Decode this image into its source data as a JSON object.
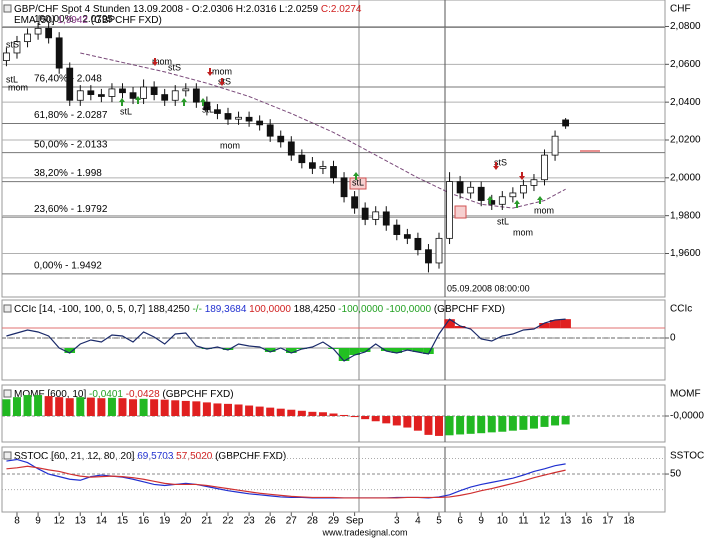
{
  "chart_data": [
    {
      "type": "candlestick",
      "header": [
        {
          "text": "GBP/CHF Spot 4 Stunden  13.09.2008 - O:2.0306 H:2.0316 L:2.0259",
          "color": "#000000"
        },
        {
          "text": " C:2.0274",
          "color": "#d02020"
        }
      ],
      "axis_label": "CHF",
      "x": [
        -0.5,
        0,
        0.5,
        1,
        1.5,
        2,
        2.5,
        3,
        3.5,
        4,
        4.5,
        5,
        5.5,
        6,
        6.5,
        7,
        7.5,
        8,
        8.5,
        9,
        9.5,
        10,
        10.5,
        11,
        11.5,
        12,
        12.5,
        13,
        13.5,
        14,
        14.5,
        15,
        15.5,
        16,
        16.5,
        17,
        17.5,
        18,
        18.5,
        19,
        19.5,
        20,
        20.5,
        21,
        21.5,
        22,
        22.5,
        23,
        23.5,
        24,
        24.5,
        25,
        25.5,
        26
      ],
      "open": [
        2.062,
        2.066,
        2.072,
        2.076,
        2.079,
        2.074,
        2.058,
        2.041,
        2.046,
        2.044,
        2.043,
        2.047,
        2.045,
        2.042,
        2.048,
        2.044,
        2.041,
        2.046,
        2.047,
        2.04,
        2.036,
        2.034,
        2.031,
        2.032,
        2.03,
        2.028,
        2.022,
        2.019,
        2.012,
        2.008,
        2.005,
        2.006,
        2.0,
        1.99,
        1.984,
        1.978,
        1.982,
        1.975,
        1.97,
        1.968,
        1.962,
        1.955,
        1.968,
        1.998,
        1.992,
        1.995,
        1.988,
        1.986,
        1.99,
        1.992,
        1.996,
        1.999,
        2.012,
        2.0306
      ],
      "high": [
        2.069,
        2.075,
        2.079,
        2.082,
        2.082,
        2.077,
        2.061,
        2.049,
        2.049,
        2.047,
        2.05,
        2.05,
        2.048,
        2.052,
        2.051,
        2.047,
        2.049,
        2.05,
        2.05,
        2.043,
        2.039,
        2.037,
        2.035,
        2.035,
        2.033,
        2.031,
        2.025,
        2.022,
        2.015,
        2.011,
        2.009,
        2.009,
        2.003,
        1.993,
        1.987,
        1.985,
        1.985,
        1.978,
        1.973,
        1.971,
        1.965,
        1.971,
        2.003,
        2.001,
        1.998,
        1.998,
        1.991,
        1.993,
        1.995,
        1.999,
        2.002,
        2.015,
        2.025,
        2.0316
      ],
      "low": [
        2.059,
        2.063,
        2.069,
        2.073,
        2.071,
        2.055,
        2.038,
        2.038,
        2.041,
        2.04,
        2.04,
        2.042,
        2.039,
        2.039,
        2.041,
        2.038,
        2.038,
        2.043,
        2.037,
        2.033,
        2.031,
        2.028,
        2.028,
        2.027,
        2.025,
        2.019,
        2.016,
        2.009,
        2.005,
        2.002,
        2.002,
        1.997,
        1.987,
        1.981,
        1.975,
        1.975,
        1.972,
        1.967,
        1.965,
        1.959,
        1.95,
        1.952,
        1.965,
        1.989,
        1.989,
        1.985,
        1.983,
        1.983,
        1.987,
        1.989,
        1.993,
        1.996,
        2.009,
        2.0259
      ],
      "close": [
        2.066,
        2.072,
        2.076,
        2.079,
        2.074,
        2.058,
        2.041,
        2.046,
        2.044,
        2.043,
        2.047,
        2.045,
        2.042,
        2.048,
        2.044,
        2.041,
        2.046,
        2.047,
        2.04,
        2.036,
        2.034,
        2.031,
        2.032,
        2.03,
        2.028,
        2.022,
        2.019,
        2.012,
        2.008,
        2.005,
        2.006,
        2.0,
        1.99,
        1.984,
        1.978,
        1.982,
        1.975,
        1.97,
        1.968,
        1.962,
        1.955,
        1.968,
        1.998,
        1.992,
        1.995,
        1.988,
        1.986,
        1.99,
        1.992,
        1.996,
        1.999,
        2.012,
        2.022,
        2.0274
      ],
      "up_color": "#ffffff",
      "down_color": "#111111",
      "ema": {
        "header": [
          {
            "text": "EMA [50] ",
            "color": "#000000"
          },
          {
            "text": "1,9942",
            "color": "#8a3a8a"
          },
          {
            "text": " (GBPCHF FXD)",
            "color": "#000000"
          }
        ],
        "color": "#7a4a7a",
        "x": [
          3,
          5,
          7,
          9,
          11,
          13,
          15,
          17,
          19,
          20.5,
          22,
          23.5,
          25,
          26
        ],
        "values": [
          2.066,
          2.061,
          2.056,
          2.05,
          2.043,
          2.034,
          2.024,
          2.012,
          2.0,
          1.992,
          1.986,
          1.984,
          1.988,
          1.994
        ]
      },
      "levels": [
        {
          "label": "100,00% - 2.0795",
          "value": 2.0795
        },
        {
          "label": "76,40% - 2.048",
          "value": 2.048
        },
        {
          "label": "61,80% - 2.0287",
          "value": 2.0287
        },
        {
          "label": "50,00% - 2.0133",
          "value": 2.0133
        },
        {
          "label": "38,20% - 1.998",
          "value": 1.998
        },
        {
          "label": "23,60% - 1.9792",
          "value": 1.9792
        },
        {
          "label": "0,00% - 1.9492",
          "value": 1.9492
        }
      ],
      "annotations": [
        "stS",
        "stL",
        "mom",
        "mom",
        "stS",
        "stL",
        "mom",
        "stS",
        "stL",
        "mom",
        "stL",
        "stS",
        "stL",
        "mom",
        "mom",
        "05.09.2008 08:00:00"
      ],
      "xlim": [
        -0.71,
        30.71
      ],
      "xticks": [
        {
          "value": 0,
          "label": "8"
        },
        {
          "value": 1,
          "label": "9"
        },
        {
          "value": 2,
          "label": "12"
        },
        {
          "value": 3,
          "label": "13"
        },
        {
          "value": 4,
          "label": "14"
        },
        {
          "value": 5,
          "label": "15"
        },
        {
          "value": 6,
          "label": "16"
        },
        {
          "value": 7,
          "label": "19"
        },
        {
          "value": 8,
          "label": "20"
        },
        {
          "value": 9,
          "label": "21"
        },
        {
          "value": 10,
          "label": "22"
        },
        {
          "value": 11,
          "label": "23"
        },
        {
          "value": 12,
          "label": "26"
        },
        {
          "value": 13,
          "label": "27"
        },
        {
          "value": 14,
          "label": "28"
        },
        {
          "value": 15,
          "label": "29"
        },
        {
          "value": 16,
          "label": "Sep"
        },
        {
          "value": 18,
          "label": "3"
        },
        {
          "value": 19,
          "label": "4"
        },
        {
          "value": 20,
          "label": "5"
        },
        {
          "value": 21,
          "label": "6"
        },
        {
          "value": 22,
          "label": "9"
        },
        {
          "value": 23,
          "label": "10"
        },
        {
          "value": 24,
          "label": "11"
        },
        {
          "value": 25,
          "label": "12"
        },
        {
          "value": 26,
          "label": "13"
        },
        {
          "value": 27,
          "label": "16"
        },
        {
          "value": 28,
          "label": "17"
        },
        {
          "value": 29,
          "label": "18"
        }
      ],
      "ylim": [
        1.937,
        2.094
      ],
      "yticks": [
        {
          "value": 2.08,
          "label": "2,0800"
        },
        {
          "value": 2.06,
          "label": "2,0600"
        },
        {
          "value": 2.04,
          "label": "2,0400"
        },
        {
          "value": 2.02,
          "label": "2,0200"
        },
        {
          "value": 2.0,
          "label": "2,0000"
        },
        {
          "value": 1.98,
          "label": "1,9800"
        },
        {
          "value": 1.96,
          "label": "1,9600"
        }
      ],
      "grid": true
    },
    {
      "type": "line",
      "header": [
        {
          "text": "CCIc [14, -100, 100, 0, 5, 0,7] ",
          "color": "#000000"
        },
        {
          "text": "188,4250",
          "color": "#000000"
        },
        {
          "text": " -/- ",
          "color": "#22a022"
        },
        {
          "text": "189,3684",
          "color": "#2030d0"
        },
        {
          "text": " 100,0000",
          "color": "#d02020"
        },
        {
          "text": " 188,4250",
          "color": "#000000"
        },
        {
          "text": " -100,0000",
          "color": "#22a022"
        },
        {
          "text": " -100,0000",
          "color": "#22a022"
        },
        {
          "text": " (GBPCHF FXD)",
          "color": "#000000"
        }
      ],
      "axis_label": "CCIc",
      "color": "#1a2a6a",
      "values": [
        20,
        50,
        80,
        60,
        20,
        -100,
        -150,
        -60,
        -20,
        -40,
        30,
        20,
        -40,
        60,
        10,
        -60,
        40,
        50,
        -80,
        -110,
        -90,
        -120,
        -60,
        -80,
        -90,
        -140,
        -100,
        -150,
        -110,
        -90,
        -40,
        -110,
        -230,
        -170,
        -140,
        -60,
        -130,
        -150,
        -120,
        -140,
        -160,
        40,
        188,
        120,
        90,
        -10,
        -30,
        20,
        40,
        80,
        90,
        150,
        180,
        188.425
      ],
      "bands": [
        {
          "value": 100,
          "color": "#e02020"
        },
        {
          "value": -100,
          "color": "#22c022"
        }
      ],
      "ylim": [
        -420,
        380
      ],
      "yticks": [
        0
      ]
    },
    {
      "type": "bar",
      "header": [
        {
          "text": "MOMF [600, 10] ",
          "color": "#000000"
        },
        {
          "text": "-0,0401",
          "color": "#22a022"
        },
        {
          "text": " -0,0428",
          "color": "#d02020"
        },
        {
          "text": " (GBPCHF FXD)",
          "color": "#000000"
        }
      ],
      "axis_label": "MOMF",
      "up_color": "#22b822",
      "down_color": "#e02020",
      "values": [
        0.08,
        0.09,
        0.1,
        0.1,
        0.095,
        0.09,
        0.085,
        0.09,
        0.088,
        0.085,
        0.087,
        0.085,
        0.08,
        0.082,
        0.08,
        0.078,
        0.075,
        0.072,
        0.07,
        0.065,
        0.06,
        0.058,
        0.055,
        0.05,
        0.045,
        0.04,
        0.035,
        0.03,
        0.025,
        0.02,
        0.018,
        0.012,
        0.005,
        -0.005,
        -0.015,
        -0.025,
        -0.035,
        -0.045,
        -0.055,
        -0.07,
        -0.09,
        -0.095,
        -0.092,
        -0.088,
        -0.085,
        -0.082,
        -0.078,
        -0.075,
        -0.07,
        -0.066,
        -0.06,
        -0.052,
        -0.045,
        -0.0401
      ],
      "ylim": [
        -0.124,
        0.148
      ],
      "yticks": [
        {
          "value": 0,
          "label": "-0,0000"
        }
      ]
    },
    {
      "type": "line",
      "header": [
        {
          "text": "SSTOC [60, 21, 12, 80, 20] ",
          "color": "#000000"
        },
        {
          "text": "69,5703",
          "color": "#2030d0"
        },
        {
          "text": " 57,5020",
          "color": "#d02020"
        },
        {
          "text": " (GBPCHF FXD)",
          "color": "#000000"
        }
      ],
      "axis_label": "SSTOC",
      "series": [
        {
          "color": "#2030d0",
          "values": [
            75,
            78,
            72,
            60,
            50,
            45,
            40,
            38,
            45,
            48,
            46,
            44,
            40,
            35,
            30,
            28,
            30,
            32,
            30,
            26,
            22,
            18,
            15,
            12,
            10,
            8,
            6,
            5,
            5,
            4,
            4,
            4,
            4,
            4,
            4,
            4,
            4,
            5,
            5,
            5,
            4,
            6,
            10,
            18,
            25,
            30,
            34,
            38,
            42,
            48,
            55,
            60,
            66,
            69.5703
          ]
        },
        {
          "color": "#d03030",
          "values": [
            60,
            62,
            65,
            62,
            58,
            55,
            50,
            46,
            44,
            45,
            46,
            45,
            43,
            40,
            36,
            32,
            30,
            30,
            30,
            28,
            25,
            22,
            19,
            16,
            13,
            11,
            9,
            7,
            6,
            5,
            5,
            5,
            4,
            4,
            4,
            4,
            4,
            4,
            5,
            5,
            5,
            5,
            6,
            9,
            13,
            18,
            22,
            27,
            32,
            37,
            43,
            48,
            53,
            57.502
          ]
        }
      ],
      "levels": [
        80,
        20
      ],
      "ylim": [
        -23,
        102
      ],
      "yticks": [
        50
      ]
    }
  ],
  "footer": "www.tradesignal.com"
}
